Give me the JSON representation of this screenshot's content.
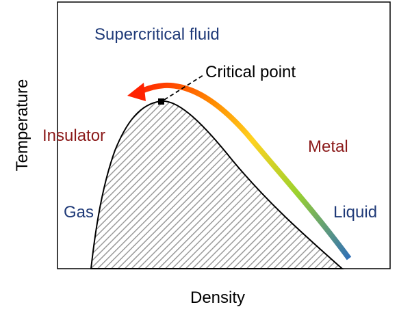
{
  "labels": {
    "supercritical": "Supercritical fluid",
    "critical_point": "Critical point",
    "insulator": "Insulator",
    "metal": "Metal",
    "gas": "Gas",
    "liquid": "Liquid"
  },
  "axes": {
    "xlabel": "Density",
    "ylabel": "Temperature"
  },
  "colors": {
    "blue_label": "#1f3a78",
    "red_label": "#8b1a1a",
    "axis": "#000000",
    "hatch": "#9a9a9a",
    "arrow_start": "#ff2200",
    "arrow_mid": "#ffd21f",
    "arrow_green": "#9bd22e",
    "arrow_end": "#2f6fb8"
  }
}
